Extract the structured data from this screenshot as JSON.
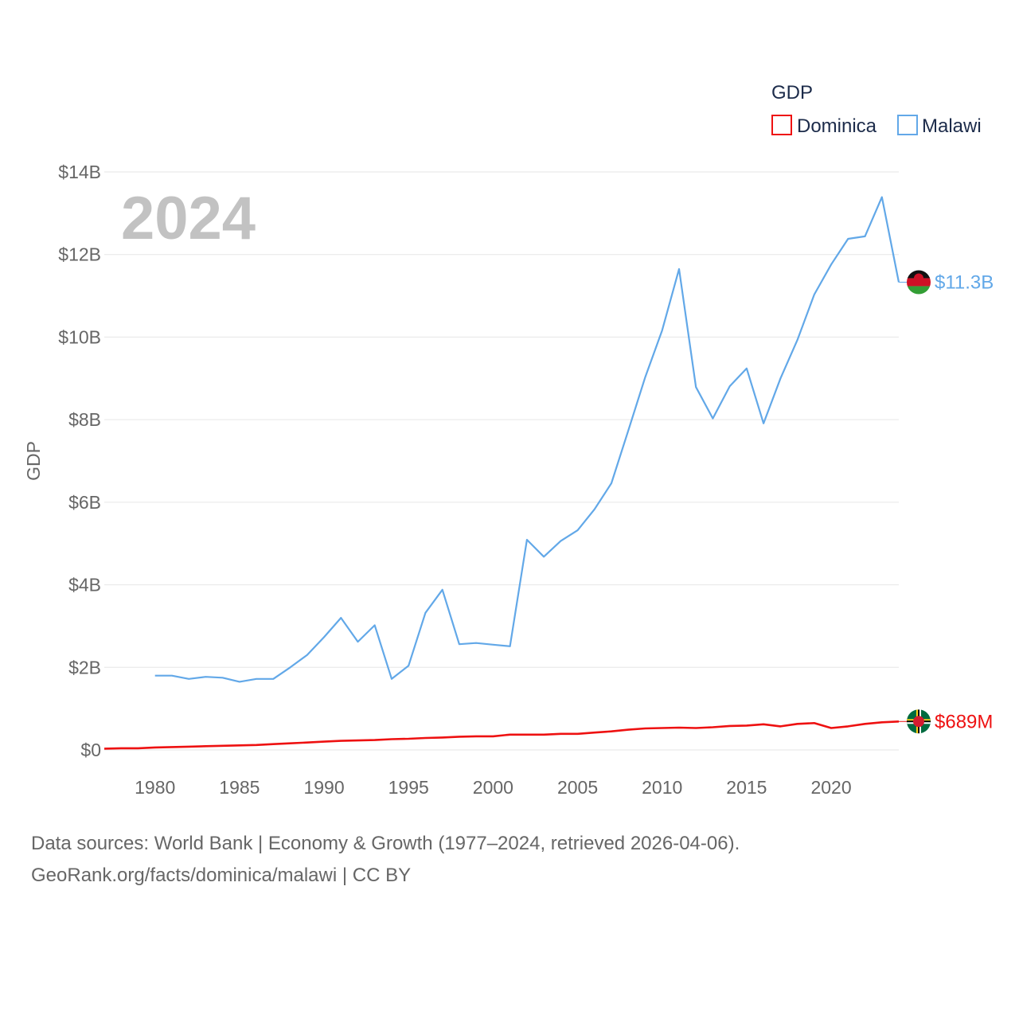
{
  "chart_data": {
    "type": "line",
    "title": "GDP",
    "year_label": "2024",
    "ylabel": "GDP",
    "xlabel": "",
    "xlim": [
      1977,
      2024
    ],
    "ylim": [
      0,
      14
    ],
    "y_unit": "billions USD",
    "x_ticks": [
      1980,
      1985,
      1990,
      1995,
      2000,
      2005,
      2010,
      2015,
      2020
    ],
    "y_ticks": [
      {
        "value": 0,
        "label": "$0"
      },
      {
        "value": 2,
        "label": "$2B"
      },
      {
        "value": 4,
        "label": "$4B"
      },
      {
        "value": 6,
        "label": "$6B"
      },
      {
        "value": 8,
        "label": "$8B"
      },
      {
        "value": 10,
        "label": "$10B"
      },
      {
        "value": 12,
        "label": "$12B"
      },
      {
        "value": 14,
        "label": "$14B"
      }
    ],
    "grid": true,
    "legend": {
      "title": "GDP",
      "position": "top-right"
    },
    "series": [
      {
        "name": "Dominica",
        "color": "#ee1111",
        "end_label": "$689M",
        "flag": "dominica",
        "x": [
          1977,
          1978,
          1979,
          1980,
          1981,
          1982,
          1983,
          1984,
          1985,
          1986,
          1987,
          1988,
          1989,
          1990,
          1991,
          1992,
          1993,
          1994,
          1995,
          1996,
          1997,
          1998,
          1999,
          2000,
          2001,
          2002,
          2003,
          2004,
          2005,
          2006,
          2007,
          2008,
          2009,
          2010,
          2011,
          2012,
          2013,
          2014,
          2015,
          2016,
          2017,
          2018,
          2019,
          2020,
          2021,
          2022,
          2023,
          2024
        ],
        "values": [
          0.03,
          0.04,
          0.04,
          0.06,
          0.07,
          0.08,
          0.09,
          0.1,
          0.11,
          0.12,
          0.14,
          0.16,
          0.18,
          0.2,
          0.22,
          0.23,
          0.24,
          0.26,
          0.27,
          0.29,
          0.3,
          0.32,
          0.33,
          0.33,
          0.37,
          0.37,
          0.37,
          0.39,
          0.39,
          0.42,
          0.45,
          0.49,
          0.52,
          0.53,
          0.54,
          0.53,
          0.55,
          0.58,
          0.59,
          0.62,
          0.57,
          0.63,
          0.65,
          0.53,
          0.57,
          0.63,
          0.67,
          0.689
        ]
      },
      {
        "name": "Malawi",
        "color": "#62a8e8",
        "end_label": "$11.3B",
        "flag": "malawi",
        "x": [
          1980,
          1981,
          1982,
          1983,
          1984,
          1985,
          1986,
          1987,
          1988,
          1989,
          1990,
          1991,
          1992,
          1993,
          1994,
          1995,
          1996,
          1997,
          1998,
          1999,
          2000,
          2001,
          2002,
          2003,
          2004,
          2005,
          2006,
          2007,
          2008,
          2009,
          2010,
          2011,
          2012,
          2013,
          2014,
          2015,
          2016,
          2017,
          2018,
          2019,
          2020,
          2021,
          2022,
          2023,
          2024
        ],
        "values": [
          1.8,
          1.8,
          1.72,
          1.77,
          1.75,
          1.65,
          1.72,
          1.72,
          2.0,
          2.3,
          2.73,
          3.2,
          2.62,
          3.02,
          1.72,
          2.04,
          3.32,
          3.88,
          2.56,
          2.59,
          2.55,
          2.51,
          5.09,
          4.68,
          5.06,
          5.32,
          5.83,
          6.46,
          7.74,
          9.03,
          10.16,
          11.65,
          8.79,
          8.03,
          8.81,
          9.24,
          7.91,
          9.0,
          9.93,
          11.03,
          11.76,
          12.38,
          12.44,
          13.39,
          11.33
        ]
      }
    ]
  },
  "footer": {
    "line1": "Data sources: World Bank | Economy & Growth (1977–2024, retrieved 2026-04-06).",
    "line2": "GeoRank.org/facts/dominica/malawi | CC BY"
  }
}
